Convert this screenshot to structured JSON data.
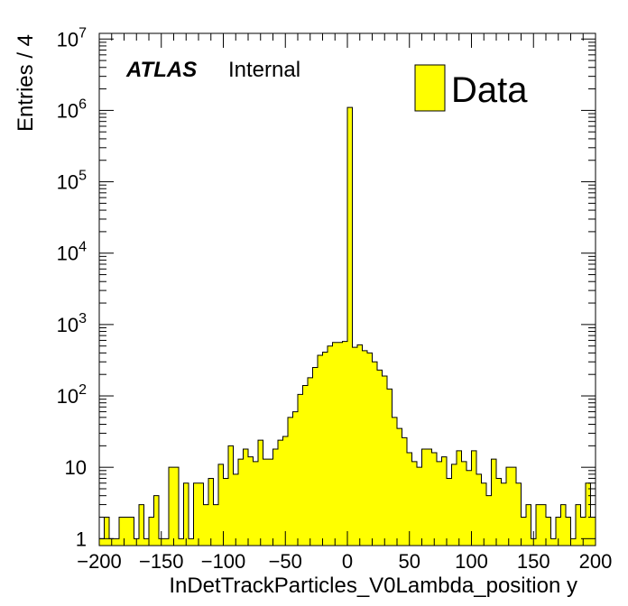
{
  "chart_data": {
    "type": "bar",
    "style": "histogram",
    "xlabel": "InDetTrackParticles_V0Lambda_position y",
    "ylabel": "Entries / 4",
    "xlim": [
      -200,
      200
    ],
    "ylim": [
      0.8,
      12000000
    ],
    "log_y": true,
    "bin_width": 4,
    "fill_color": "#ffff00",
    "line_color": "#000000",
    "legend": {
      "position": "top-right",
      "entries": [
        "Data"
      ]
    },
    "label": {
      "experiment": "ATLAS",
      "status": "Internal"
    },
    "x_ticks": [
      "−200",
      "−150",
      "−100",
      "−50",
      "0",
      "50",
      "100",
      "150",
      "200"
    ],
    "y_ticks": [
      {
        "base": "1",
        "exp": ""
      },
      {
        "base": "10",
        "exp": ""
      },
      {
        "base": "10",
        "exp": "2"
      },
      {
        "base": "10",
        "exp": "3"
      },
      {
        "base": "10",
        "exp": "4"
      },
      {
        "base": "10",
        "exp": "5"
      },
      {
        "base": "10",
        "exp": "6"
      },
      {
        "base": "10",
        "exp": "7"
      }
    ],
    "bin_low_edges": [
      -200,
      -196,
      -192,
      -188,
      -184,
      -180,
      -176,
      -172,
      -168,
      -164,
      -160,
      -156,
      -152,
      -148,
      -144,
      -140,
      -136,
      -132,
      -128,
      -124,
      -120,
      -116,
      -112,
      -108,
      -104,
      -100,
      -96,
      -92,
      -88,
      -84,
      -80,
      -76,
      -72,
      -68,
      -64,
      -60,
      -56,
      -52,
      -48,
      -44,
      -40,
      -36,
      -32,
      -28,
      -24,
      -20,
      -16,
      -12,
      -8,
      -4,
      0,
      4,
      8,
      12,
      16,
      20,
      24,
      28,
      32,
      36,
      40,
      44,
      48,
      52,
      56,
      60,
      64,
      68,
      72,
      76,
      80,
      84,
      88,
      92,
      96,
      100,
      104,
      108,
      112,
      116,
      120,
      124,
      128,
      132,
      136,
      140,
      144,
      148,
      152,
      156,
      160,
      164,
      168,
      172,
      176,
      180,
      184,
      188,
      192,
      196
    ],
    "values": [
      1,
      2,
      1,
      1,
      2,
      2,
      2,
      1,
      3,
      1,
      2,
      4,
      1,
      1,
      10,
      10,
      1,
      6,
      1,
      6,
      6,
      3,
      7,
      3,
      11,
      7,
      20,
      8,
      13,
      18,
      14,
      12,
      24,
      13,
      13,
      18,
      24,
      27,
      50,
      60,
      105,
      140,
      180,
      250,
      370,
      410,
      500,
      560,
      560,
      580,
      1100000,
      480,
      520,
      430,
      400,
      300,
      230,
      190,
      125,
      50,
      35,
      26,
      16,
      12,
      10,
      18,
      18,
      16,
      12,
      14,
      7,
      11,
      17,
      12,
      9,
      17,
      8,
      6,
      4,
      13,
      7,
      6,
      10,
      10,
      6,
      2,
      3,
      1,
      3,
      3,
      2,
      1,
      2,
      3,
      2,
      1,
      3,
      2,
      6,
      2
    ]
  }
}
